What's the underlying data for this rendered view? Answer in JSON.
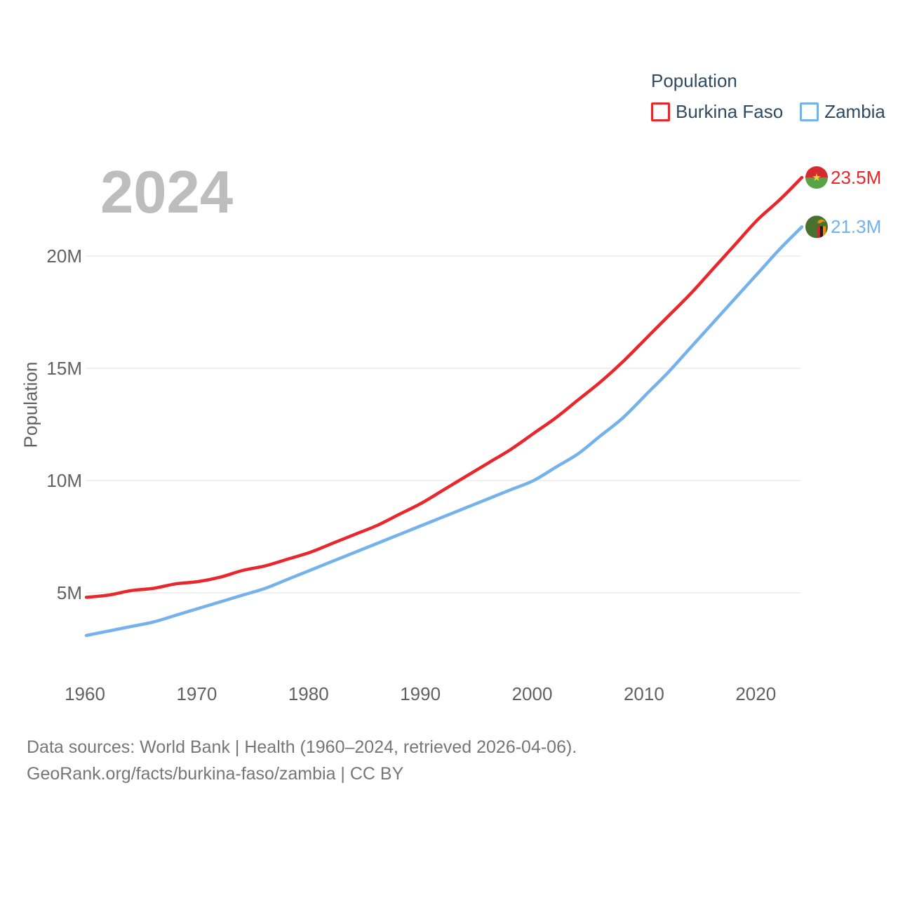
{
  "watermark": "2024",
  "legend": {
    "title": "Population",
    "items": [
      {
        "label": "Burkina Faso",
        "color": "#e8262b"
      },
      {
        "label": "Zambia",
        "color": "#74b2ed"
      }
    ]
  },
  "chart_data": {
    "type": "line",
    "title": "Population",
    "xlabel": "",
    "ylabel": "Population",
    "grid": "horizontal",
    "legend_position": "top-right",
    "x_range": [
      1960,
      2024
    ],
    "ylim": [
      2.3,
      24.6
    ],
    "y_ticks": [
      {
        "value": 5,
        "label": "5M"
      },
      {
        "value": 10,
        "label": "10M"
      },
      {
        "value": 15,
        "label": "15M"
      },
      {
        "value": 20,
        "label": "20M"
      }
    ],
    "x_ticks": [
      {
        "value": 1960,
        "label": "1960"
      },
      {
        "value": 1970,
        "label": "1970"
      },
      {
        "value": 1980,
        "label": "1980"
      },
      {
        "value": 1990,
        "label": "1990"
      },
      {
        "value": 2000,
        "label": "2000"
      },
      {
        "value": 2010,
        "label": "2010"
      },
      {
        "value": 2020,
        "label": "2020"
      }
    ],
    "x": [
      1960,
      1962,
      1964,
      1966,
      1968,
      1970,
      1972,
      1974,
      1976,
      1978,
      1980,
      1982,
      1984,
      1986,
      1988,
      1990,
      1992,
      1994,
      1996,
      1998,
      2000,
      2002,
      2004,
      2006,
      2008,
      2010,
      2012,
      2014,
      2016,
      2018,
      2020,
      2022,
      2024
    ],
    "series": [
      {
        "name": "Burkina Faso",
        "color": "#e8262b",
        "flag": "burkina-faso",
        "end_label": "23.5M",
        "end_value_millions": 23.5,
        "values": [
          4.8,
          4.9,
          5.1,
          5.2,
          5.4,
          5.5,
          5.7,
          6.0,
          6.2,
          6.5,
          6.8,
          7.2,
          7.6,
          8.0,
          8.5,
          9.0,
          9.6,
          10.2,
          10.8,
          11.4,
          12.1,
          12.8,
          13.6,
          14.4,
          15.3,
          16.3,
          17.3,
          18.3,
          19.4,
          20.5,
          21.6,
          22.5,
          23.5
        ]
      },
      {
        "name": "Zambia",
        "color": "#74b2ed",
        "flag": "zambia",
        "end_label": "21.3M",
        "end_value_millions": 21.3,
        "values": [
          3.1,
          3.3,
          3.5,
          3.7,
          4.0,
          4.3,
          4.6,
          4.9,
          5.2,
          5.6,
          6.0,
          6.4,
          6.8,
          7.2,
          7.6,
          8.0,
          8.4,
          8.8,
          9.2,
          9.6,
          10.0,
          10.6,
          11.2,
          12.0,
          12.8,
          13.8,
          14.8,
          15.9,
          17.0,
          18.1,
          19.2,
          20.3,
          21.3
        ]
      }
    ]
  },
  "footer": {
    "line1": "Data sources: World Bank | Health (1960–2024, retrieved 2026-04-06).",
    "line2": "GeoRank.org/facts/burkina-faso/zambia | CC BY"
  },
  "colors": {
    "red": "#e8262b",
    "blue": "#74b2ed",
    "grid": "#ebebeb",
    "watermark": "#bdbdbd",
    "axis_text": "#616161",
    "legend_text": "#2f4a63",
    "footer_text": "#767676",
    "flag_bf_red": "#d52a2e",
    "flag_bf_green": "#55a346",
    "flag_bf_star": "#f5d038",
    "flag_zm_green": "#47712e",
    "flag_zm_red": "#d5212e",
    "flag_zm_black": "#1c1c1c",
    "flag_zm_orange": "#ef8c00"
  }
}
